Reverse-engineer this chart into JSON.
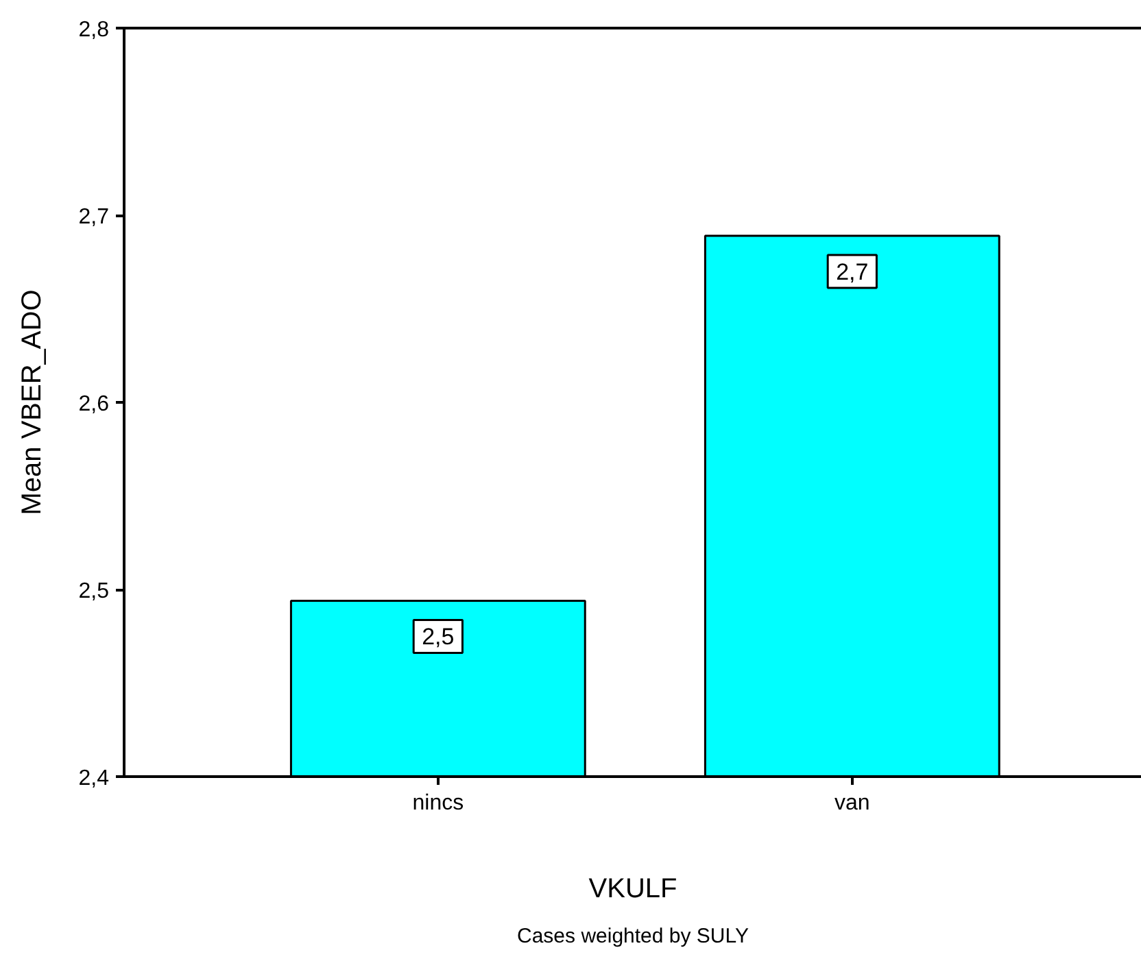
{
  "chart_data": {
    "type": "bar",
    "categories": [
      "nincs",
      "van"
    ],
    "values": [
      2.494,
      2.689
    ],
    "color": "#00ffff",
    "value_labels": [
      "2,5",
      "2,7"
    ],
    "ylim": [
      2.4,
      2.8
    ],
    "yticks": [
      {
        "value": 2.4,
        "label": "2,4"
      },
      {
        "value": 2.5,
        "label": "2,5"
      },
      {
        "value": 2.6,
        "label": "2,6"
      },
      {
        "value": 2.7,
        "label": "2,7"
      },
      {
        "value": 2.8,
        "label": "2,8"
      }
    ],
    "xlabel": "VKULF",
    "ylabel": "Mean VBER_ADO",
    "grid": false,
    "annotations": [
      "Cases weighted by SULY"
    ]
  }
}
